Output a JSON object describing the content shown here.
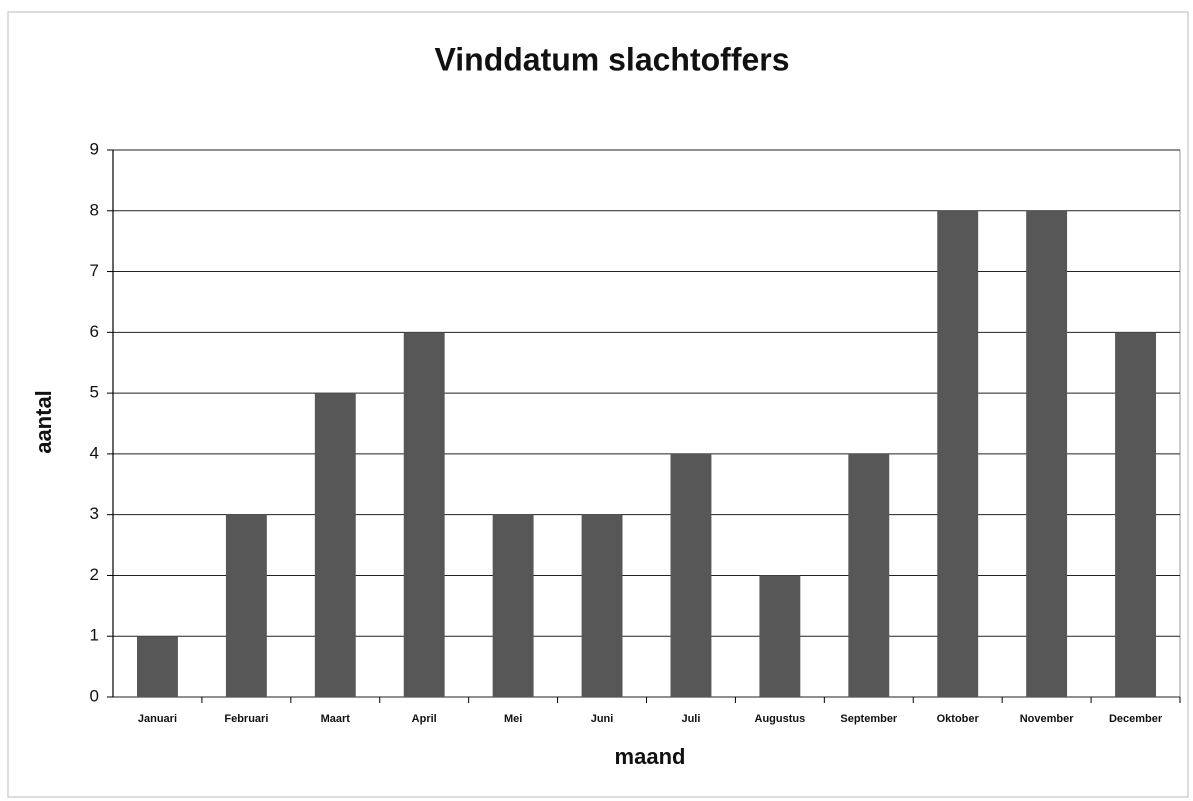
{
  "chart_data": {
    "type": "bar",
    "title": "Vinddatum slachtoffers",
    "x_label": "maand",
    "y_label": "aantal",
    "categories": [
      "Januari",
      "Februari",
      "Maart",
      "April",
      "Mei",
      "Juni",
      "Juli",
      "Augustus",
      "September",
      "Oktober",
      "November",
      "December"
    ],
    "values": [
      1,
      3,
      5,
      6,
      3,
      3,
      4,
      2,
      4,
      8,
      8,
      6
    ],
    "color": "#575757",
    "ylim": [
      0,
      9
    ],
    "yticks": [
      0,
      1,
      2,
      3,
      4,
      5,
      6,
      7,
      8,
      9
    ],
    "grid": true
  }
}
